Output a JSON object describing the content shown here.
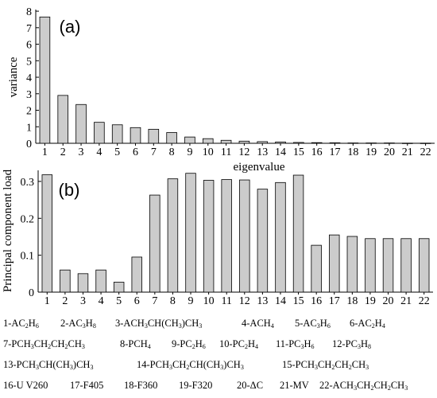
{
  "chart_data": [
    {
      "type": "bar",
      "panel_label": "(a)",
      "xlabel": "eigenvalue",
      "ylabel": "variance",
      "ylim": [
        0,
        8
      ],
      "yticks": [
        "0",
        "1",
        "2",
        "3",
        "4",
        "5",
        "6",
        "7",
        "8"
      ],
      "categories": [
        "1",
        "2",
        "3",
        "4",
        "5",
        "6",
        "7",
        "8",
        "9",
        "10",
        "11",
        "12",
        "13",
        "14",
        "15",
        "16",
        "17",
        "18",
        "19",
        "20",
        "21",
        "22"
      ],
      "values": [
        7.65,
        2.9,
        2.35,
        1.27,
        1.12,
        0.95,
        0.85,
        0.65,
        0.38,
        0.28,
        0.18,
        0.13,
        0.1,
        0.08,
        0.05,
        0.04,
        0.03,
        0.02,
        0.02,
        0.02,
        0.01,
        0.01
      ],
      "grid": false,
      "bar_color": "#cccccc"
    },
    {
      "type": "bar",
      "panel_label": "(b)",
      "xlabel": "",
      "ylabel": "Principal component load",
      "ylim": [
        0,
        0.3
      ],
      "yticks": [
        "0",
        "0.1",
        "0.2",
        "0.3"
      ],
      "categories": [
        "1",
        "2",
        "3",
        "4",
        "5",
        "6",
        "7",
        "8",
        "9",
        "10",
        "11",
        "12",
        "13",
        "14",
        "15",
        "16",
        "17",
        "18",
        "19",
        "20",
        "21",
        "22"
      ],
      "values": [
        0.318,
        0.06,
        0.05,
        0.06,
        0.027,
        0.095,
        0.263,
        0.307,
        0.322,
        0.303,
        0.305,
        0.304,
        0.279,
        0.297,
        0.317,
        0.127,
        0.155,
        0.151,
        0.145,
        0.145,
        0.145,
        0.145
      ],
      "grid": false,
      "bar_color": "#cccccc"
    }
  ],
  "legend_lines": [
    [
      {
        "num": "1-",
        "parts": [
          [
            "AC",
            ""
          ],
          [
            "2",
            "sub"
          ],
          [
            "H",
            ""
          ],
          [
            "6",
            "sub"
          ]
        ]
      },
      {
        "num": "2-",
        "parts": [
          [
            "AC",
            ""
          ],
          [
            "3",
            "sub"
          ],
          [
            "H",
            ""
          ],
          [
            "8",
            "sub"
          ]
        ]
      },
      {
        "num": "3-",
        "parts": [
          [
            "ACH",
            ""
          ],
          [
            "3",
            "sub"
          ],
          [
            "CH(CH",
            ""
          ],
          [
            "3",
            "sub"
          ],
          [
            ")CH",
            ""
          ],
          [
            "3",
            "sub"
          ]
        ]
      },
      {
        "num": "4-",
        "parts": [
          [
            "ACH",
            ""
          ],
          [
            "4",
            "sub"
          ]
        ]
      },
      {
        "num": "5-",
        "parts": [
          [
            "AC",
            ""
          ],
          [
            "3",
            "sub"
          ],
          [
            "H",
            ""
          ],
          [
            "6",
            "sub"
          ]
        ]
      },
      {
        "num": "6-",
        "parts": [
          [
            "AC",
            ""
          ],
          [
            "2",
            "sub"
          ],
          [
            "H",
            ""
          ],
          [
            "4",
            "sub"
          ]
        ]
      }
    ],
    [
      {
        "num": "7-",
        "parts": [
          [
            "PCH",
            ""
          ],
          [
            "3",
            "sub"
          ],
          [
            "CH",
            ""
          ],
          [
            "2",
            "sub"
          ],
          [
            "CH",
            ""
          ],
          [
            "2",
            "sub"
          ],
          [
            "CH",
            ""
          ],
          [
            "3",
            "sub"
          ]
        ]
      },
      {
        "num": "8-",
        "parts": [
          [
            "PCH",
            ""
          ],
          [
            "4",
            "sub"
          ]
        ]
      },
      {
        "num": "9-",
        "parts": [
          [
            "PC",
            ""
          ],
          [
            "2",
            "sub"
          ],
          [
            "H",
            ""
          ],
          [
            "6",
            "sub"
          ]
        ]
      },
      {
        "num": "10-",
        "parts": [
          [
            "PC",
            ""
          ],
          [
            "2",
            "sub"
          ],
          [
            "H",
            ""
          ],
          [
            "4",
            "sub"
          ]
        ]
      },
      {
        "num": "11-",
        "parts": [
          [
            "PC",
            ""
          ],
          [
            "3",
            "sub"
          ],
          [
            "H",
            ""
          ],
          [
            "6",
            "sub"
          ]
        ]
      },
      {
        "num": "12-",
        "parts": [
          [
            "PC",
            ""
          ],
          [
            "3",
            "sub"
          ],
          [
            "H",
            ""
          ],
          [
            "8",
            "sub"
          ]
        ]
      }
    ],
    [
      {
        "num": "13-",
        "parts": [
          [
            "PCH",
            ""
          ],
          [
            "3",
            "sub"
          ],
          [
            "CH(CH",
            ""
          ],
          [
            "3",
            "sub"
          ],
          [
            ")CH",
            ""
          ],
          [
            "3",
            "sub"
          ]
        ]
      },
      {
        "num": "14-",
        "parts": [
          [
            "PCH",
            ""
          ],
          [
            "3",
            "sub"
          ],
          [
            "CH",
            ""
          ],
          [
            "2",
            "sub"
          ],
          [
            "CH(CH",
            ""
          ],
          [
            "3",
            "sub"
          ],
          [
            ")CH",
            ""
          ],
          [
            "3",
            "sub"
          ]
        ]
      },
      {
        "num": "15-",
        "parts": [
          [
            "PCH",
            ""
          ],
          [
            "3",
            "sub"
          ],
          [
            "CH",
            ""
          ],
          [
            "2",
            "sub"
          ],
          [
            "CH",
            ""
          ],
          [
            "2",
            "sub"
          ],
          [
            "CH",
            ""
          ],
          [
            "3",
            "sub"
          ]
        ]
      }
    ],
    [
      {
        "num": "16-",
        "parts": [
          [
            "U V260",
            ""
          ]
        ]
      },
      {
        "num": "17-",
        "parts": [
          [
            "F405",
            ""
          ]
        ]
      },
      {
        "num": "18-",
        "parts": [
          [
            "F360",
            ""
          ]
        ]
      },
      {
        "num": "19-",
        "parts": [
          [
            "F320",
            ""
          ]
        ]
      },
      {
        "num": "20-",
        "parts": [
          [
            "ΔC",
            ""
          ]
        ]
      },
      {
        "num": "21-",
        "parts": [
          [
            "MV",
            ""
          ]
        ]
      },
      {
        "num": "22-",
        "parts": [
          [
            "ACH",
            ""
          ],
          [
            "3",
            "sub"
          ],
          [
            "CH",
            ""
          ],
          [
            "2",
            "sub"
          ],
          [
            "CH",
            ""
          ],
          [
            "2",
            "sub"
          ],
          [
            "CH",
            ""
          ],
          [
            "3",
            "sub"
          ]
        ]
      }
    ]
  ]
}
